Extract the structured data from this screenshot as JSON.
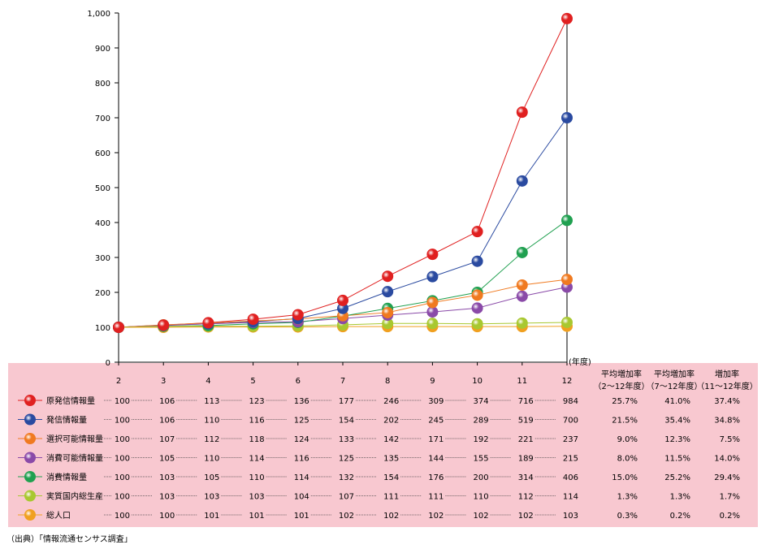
{
  "chart_data": {
    "type": "line",
    "x_unit": "(年度)",
    "categories": [
      "2",
      "3",
      "4",
      "5",
      "6",
      "7",
      "8",
      "9",
      "10",
      "11",
      "12"
    ],
    "y_ticks": [
      "0",
      "100",
      "200",
      "300",
      "400",
      "500",
      "600",
      "700",
      "800",
      "900",
      "1,000"
    ],
    "ylim": [
      0,
      1000
    ],
    "grid": false,
    "legend": "table-below",
    "series": [
      {
        "name": "原発信情報量",
        "color": "#e02020",
        "values": [
          100,
          106,
          113,
          123,
          136,
          177,
          246,
          309,
          374,
          716,
          984
        ],
        "rates": [
          "25.7%",
          "41.0%",
          "37.4%"
        ]
      },
      {
        "name": "発信情報量",
        "color": "#2a4aa0",
        "values": [
          100,
          106,
          110,
          116,
          125,
          154,
          202,
          245,
          289,
          519,
          700
        ],
        "rates": [
          "21.5%",
          "35.4%",
          "34.8%"
        ]
      },
      {
        "name": "選択可能情報量",
        "color": "#f07a20",
        "values": [
          100,
          107,
          112,
          118,
          124,
          133,
          142,
          171,
          192,
          221,
          237
        ],
        "rates": [
          "9.0%",
          "12.3%",
          "7.5%"
        ]
      },
      {
        "name": "消費可能情報量",
        "color": "#8a4aa8",
        "values": [
          100,
          105,
          110,
          114,
          116,
          125,
          135,
          144,
          155,
          189,
          215
        ],
        "rates": [
          "8.0%",
          "11.5%",
          "14.0%"
        ]
      },
      {
        "name": "消費情報量",
        "color": "#20a050",
        "values": [
          100,
          103,
          105,
          110,
          114,
          132,
          154,
          176,
          200,
          314,
          406
        ],
        "rates": [
          "15.0%",
          "25.2%",
          "29.4%"
        ]
      },
      {
        "name": "実質国内総生産",
        "color": "#a8c830",
        "values": [
          100,
          103,
          103,
          103,
          104,
          107,
          111,
          111,
          110,
          112,
          114
        ],
        "rates": [
          "1.3%",
          "1.3%",
          "1.7%"
        ]
      },
      {
        "name": "総人口",
        "color": "#f0a020",
        "values": [
          100,
          100,
          101,
          101,
          101,
          102,
          102,
          102,
          102,
          102,
          103
        ],
        "rates": [
          "0.3%",
          "0.2%",
          "0.2%"
        ]
      }
    ],
    "rate_headers": [
      {
        "line1": "平均増加率",
        "line2": "（2～12年度）"
      },
      {
        "line1": "平均増加率",
        "line2": "（7～12年度）"
      },
      {
        "line1": "増加率",
        "line2": "（11～12年度）"
      }
    ]
  },
  "source": "（出典）「情報流通センサス調査」"
}
